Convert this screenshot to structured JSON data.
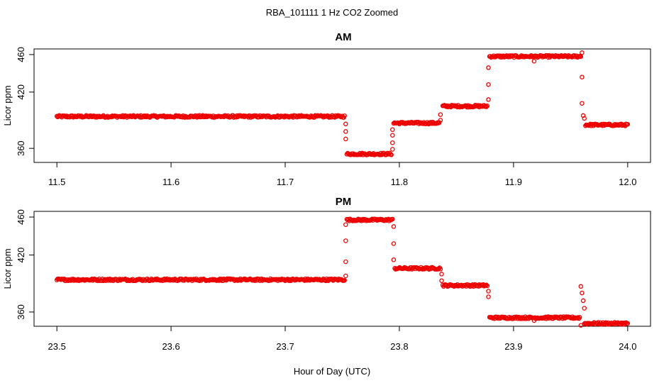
{
  "chart_data": {
    "type": "scatter",
    "title": "RBA_101111  1 Hz CO2 Zoomed",
    "xlabel": "Hour of Day (UTC)",
    "point_color": "#ee0000",
    "panels": [
      {
        "title": "AM",
        "ylabel": "Licor ppm",
        "xlim": [
          11.48,
          12.02
        ],
        "ylim": [
          345,
          466
        ],
        "x_ticks": [
          "11.5",
          "11.6",
          "11.7",
          "11.8",
          "11.9",
          "12.0"
        ],
        "x_tick_values": [
          11.5,
          11.6,
          11.7,
          11.8,
          11.9,
          12.0
        ],
        "y_ticks": [
          "360",
          "420",
          "460"
        ],
        "y_tick_values": [
          360,
          420,
          460
        ],
        "steps": [
          {
            "x_start": 11.5,
            "x_end": 11.752,
            "y": 394
          },
          {
            "x_start": 11.754,
            "x_end": 11.793,
            "y": 354
          },
          {
            "x_start": 11.795,
            "x_end": 11.835,
            "y": 387
          },
          {
            "x_start": 11.838,
            "x_end": 11.877,
            "y": 405
          },
          {
            "x_start": 11.879,
            "x_end": 11.959,
            "y": 458
          },
          {
            "x_start": 11.963,
            "x_end": 12.0,
            "y": 385
          }
        ],
        "transitions": [
          {
            "x": 11.753,
            "y": 386
          },
          {
            "x": 11.753,
            "y": 378
          },
          {
            "x": 11.753,
            "y": 370
          },
          {
            "x": 11.794,
            "y": 359
          },
          {
            "x": 11.794,
            "y": 366
          },
          {
            "x": 11.794,
            "y": 374
          },
          {
            "x": 11.794,
            "y": 380
          },
          {
            "x": 11.836,
            "y": 390
          },
          {
            "x": 11.836,
            "y": 396
          },
          {
            "x": 11.878,
            "y": 412
          },
          {
            "x": 11.878,
            "y": 428
          },
          {
            "x": 11.878,
            "y": 446
          },
          {
            "x": 11.918,
            "y": 453
          },
          {
            "x": 11.96,
            "y": 462
          },
          {
            "x": 11.96,
            "y": 436
          },
          {
            "x": 11.96,
            "y": 408
          },
          {
            "x": 11.961,
            "y": 395
          },
          {
            "x": 11.962,
            "y": 392
          }
        ]
      },
      {
        "title": "PM",
        "ylabel": "Licor ppm",
        "xlim": [
          23.48,
          24.02
        ],
        "ylim": [
          345,
          466
        ],
        "x_ticks": [
          "23.5",
          "23.6",
          "23.7",
          "23.8",
          "23.9",
          "24.0"
        ],
        "x_tick_values": [
          23.5,
          23.6,
          23.7,
          23.8,
          23.9,
          24.0
        ],
        "y_ticks": [
          "360",
          "420",
          "460"
        ],
        "y_tick_values": [
          360,
          420,
          460
        ],
        "steps": [
          {
            "x_start": 23.5,
            "x_end": 23.752,
            "y": 394
          },
          {
            "x_start": 23.754,
            "x_end": 23.794,
            "y": 457
          },
          {
            "x_start": 23.796,
            "x_end": 23.836,
            "y": 406
          },
          {
            "x_start": 23.838,
            "x_end": 23.877,
            "y": 388
          },
          {
            "x_start": 23.879,
            "x_end": 23.958,
            "y": 354
          },
          {
            "x_start": 23.962,
            "x_end": 24.0,
            "y": 348
          }
        ],
        "transitions": [
          {
            "x": 23.753,
            "y": 398
          },
          {
            "x": 23.753,
            "y": 413
          },
          {
            "x": 23.753,
            "y": 435
          },
          {
            "x": 23.753,
            "y": 452
          },
          {
            "x": 23.795,
            "y": 450
          },
          {
            "x": 23.795,
            "y": 432
          },
          {
            "x": 23.795,
            "y": 415
          },
          {
            "x": 23.837,
            "y": 400
          },
          {
            "x": 23.837,
            "y": 393
          },
          {
            "x": 23.878,
            "y": 382
          },
          {
            "x": 23.878,
            "y": 376
          },
          {
            "x": 23.918,
            "y": 351
          },
          {
            "x": 23.959,
            "y": 346
          },
          {
            "x": 23.959,
            "y": 387
          },
          {
            "x": 23.96,
            "y": 380
          },
          {
            "x": 23.961,
            "y": 372
          },
          {
            "x": 23.962,
            "y": 364
          }
        ]
      }
    ]
  }
}
